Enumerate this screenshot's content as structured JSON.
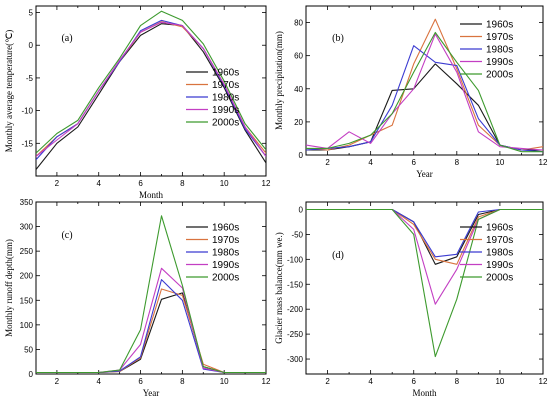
{
  "figure": {
    "colors": {
      "1960s": "#1a1a1a",
      "1970s": "#d9733f",
      "1980s": "#3b3bd1",
      "1990s": "#c33fc3",
      "2000s": "#3d9a2e"
    }
  },
  "chart_data": [
    {
      "type": "line",
      "panel": "(a)",
      "xlabel": "Month",
      "ylabel": "Monthly average temperature(℃)",
      "xlim": [
        1,
        12
      ],
      "ylim": [
        -20,
        6
      ],
      "xticks": [
        2,
        4,
        6,
        8,
        10,
        12
      ],
      "yticks": [
        5,
        0,
        -5,
        -10,
        -15
      ],
      "legend_position": "center-right",
      "x": [
        1,
        2,
        3,
        4,
        5,
        6,
        7,
        8,
        9,
        10,
        11,
        12
      ],
      "series": [
        {
          "name": "1960s",
          "values": [
            -19,
            -15,
            -12.5,
            -7.5,
            -2.5,
            1.5,
            3.3,
            3,
            -1,
            -6.5,
            -13,
            -18
          ]
        },
        {
          "name": "1970s",
          "values": [
            -17,
            -14,
            -12,
            -7,
            -2.5,
            2,
            3.6,
            2.8,
            -0.5,
            -6,
            -12.5,
            -16.5
          ]
        },
        {
          "name": "1980s",
          "values": [
            -17.5,
            -14,
            -12,
            -7,
            -2.5,
            2.2,
            3.8,
            3,
            -0.5,
            -6.2,
            -12.8,
            -17
          ]
        },
        {
          "name": "1990s",
          "values": [
            -17,
            -14.5,
            -12,
            -7,
            -2.3,
            2,
            3.5,
            3,
            -0.5,
            -6,
            -12.5,
            -17
          ]
        },
        {
          "name": "2000s",
          "values": [
            -16.5,
            -13.5,
            -11.5,
            -6.5,
            -2,
            3,
            5.2,
            3.8,
            0.2,
            -5.5,
            -12,
            -16
          ]
        }
      ]
    },
    {
      "type": "line",
      "panel": "(b)",
      "xlabel": "Year",
      "ylabel": "Monthly precipitation(mm)",
      "xlim": [
        1,
        12
      ],
      "ylim": [
        0,
        90
      ],
      "xticks": [
        2,
        4,
        6,
        8,
        10,
        12
      ],
      "yticks": [
        0,
        20,
        40,
        60,
        80
      ],
      "legend_position": "top-right",
      "x": [
        1,
        2,
        3,
        4,
        5,
        6,
        7,
        8,
        9,
        10,
        11,
        12
      ],
      "series": [
        {
          "name": "1960s",
          "values": [
            3,
            3,
            5,
            8,
            39,
            40,
            55,
            43,
            30,
            6,
            3,
            3
          ]
        },
        {
          "name": "1970s",
          "values": [
            4,
            3,
            6,
            12,
            18,
            55,
            82,
            52,
            18,
            6,
            3,
            5
          ]
        },
        {
          "name": "1980s",
          "values": [
            3,
            4,
            5,
            8,
            30,
            66,
            56,
            54,
            22,
            6,
            3,
            2
          ]
        },
        {
          "name": "1990s",
          "values": [
            6,
            4,
            14,
            7,
            25,
            40,
            73,
            50,
            14,
            5,
            4,
            3
          ]
        },
        {
          "name": "2000s",
          "values": [
            4,
            4,
            7,
            12,
            25,
            50,
            74,
            56,
            39,
            6,
            2,
            2
          ]
        }
      ]
    },
    {
      "type": "line",
      "panel": "(c)",
      "xlabel": "Year",
      "ylabel": "Monthly runoff depth(mm)",
      "xlim": [
        1,
        12
      ],
      "ylim": [
        0,
        350
      ],
      "xticks": [
        2,
        4,
        6,
        8,
        10,
        12
      ],
      "yticks": [
        0,
        50,
        100,
        150,
        200,
        250,
        300,
        350
      ],
      "legend_position": "center-right",
      "x": [
        1,
        2,
        3,
        4,
        5,
        6,
        7,
        8,
        9,
        10,
        11,
        12
      ],
      "series": [
        {
          "name": "1960s",
          "values": [
            3,
            3,
            3,
            3,
            5,
            30,
            152,
            165,
            15,
            3,
            3,
            3
          ]
        },
        {
          "name": "1970s",
          "values": [
            3,
            3,
            3,
            3,
            5,
            33,
            173,
            160,
            20,
            3,
            3,
            3
          ]
        },
        {
          "name": "1980s",
          "values": [
            3,
            3,
            3,
            3,
            6,
            35,
            192,
            150,
            10,
            3,
            3,
            3
          ]
        },
        {
          "name": "1990s",
          "values": [
            3,
            3,
            3,
            3,
            8,
            60,
            215,
            175,
            12,
            3,
            3,
            3
          ]
        },
        {
          "name": "2000s",
          "values": [
            3,
            3,
            3,
            3,
            8,
            90,
            322,
            180,
            15,
            3,
            3,
            3
          ]
        }
      ]
    },
    {
      "type": "line",
      "panel": "(d)",
      "xlabel": "Month",
      "ylabel": "Glacier mass balance(mm we.)",
      "xlim": [
        1,
        12
      ],
      "ylim": [
        -330,
        15
      ],
      "xticks": [
        2,
        4,
        6,
        8,
        10,
        12
      ],
      "yticks": [
        0,
        -50,
        -100,
        -150,
        -200,
        -250,
        -300
      ],
      "legend_position": "center-right",
      "x": [
        1,
        2,
        3,
        4,
        5,
        6,
        7,
        8,
        9,
        10,
        11,
        12
      ],
      "series": [
        {
          "name": "1960s",
          "values": [
            0,
            0,
            0,
            0,
            0,
            -25,
            -110,
            -95,
            -10,
            0,
            0,
            0
          ]
        },
        {
          "name": "1970s",
          "values": [
            0,
            0,
            0,
            0,
            0,
            -30,
            -100,
            -110,
            -15,
            0,
            0,
            0
          ]
        },
        {
          "name": "1980s",
          "values": [
            0,
            0,
            0,
            0,
            0,
            -25,
            -95,
            -90,
            -5,
            0,
            0,
            0
          ]
        },
        {
          "name": "1990s",
          "values": [
            0,
            0,
            0,
            0,
            0,
            -40,
            -190,
            -120,
            -20,
            0,
            0,
            0
          ]
        },
        {
          "name": "2000s",
          "values": [
            0,
            0,
            0,
            0,
            0,
            -50,
            -295,
            -180,
            -20,
            0,
            0,
            0
          ]
        }
      ]
    }
  ]
}
